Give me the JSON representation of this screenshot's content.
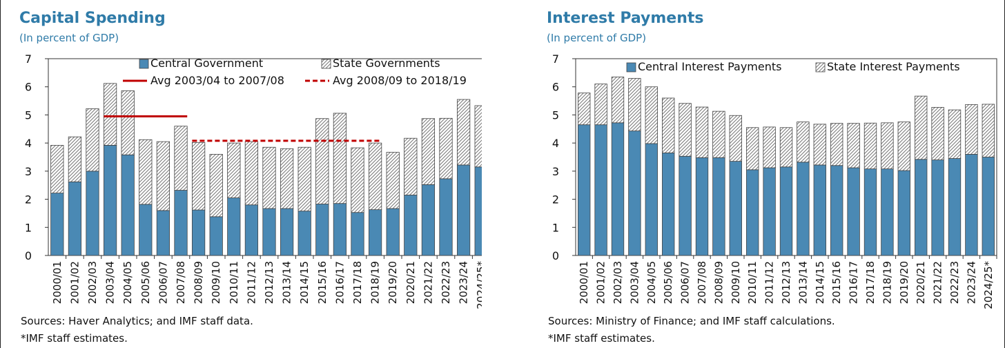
{
  "colors": {
    "title": "#2F7BA8",
    "bar_central": "#4A89B4",
    "hatch": "#777777",
    "avg_line": "#C00000"
  },
  "left": {
    "title": "Capital Spending",
    "subtitle": "(In percent of GDP)",
    "source": "Sources: Haver Analytics; and IMF staff data.",
    "note": "*IMF staff estimates."
  },
  "right": {
    "title": "Interest Payments",
    "subtitle": "(In percent of GDP)",
    "source": "Sources: Ministry of Finance; and IMF staff calculations.",
    "note": "*IMF staff estimates."
  },
  "chart_data": [
    {
      "type": "bar",
      "stacked": true,
      "title": "Capital Spending",
      "subtitle": "(In percent of GDP)",
      "ylim": [
        0,
        7
      ],
      "yticks": [
        0,
        1,
        2,
        3,
        4,
        5,
        6,
        7
      ],
      "categories": [
        "2000/01",
        "2001/02",
        "2002/03",
        "2003/04",
        "2004/05",
        "2005/06",
        "2006/07",
        "2007/08",
        "2008/09",
        "2009/10",
        "2010/11",
        "2011/12",
        "2012/13",
        "2013/14",
        "2014/15",
        "2015/16",
        "2016/17",
        "2017/18",
        "2018/19",
        "2019/20",
        "2020/21",
        "2021/22",
        "2022/23",
        "2023/24",
        "2024/25*"
      ],
      "series": [
        {
          "name": "Central Government",
          "values": [
            2.22,
            2.62,
            3.0,
            3.92,
            3.58,
            1.82,
            1.6,
            2.32,
            1.62,
            1.38,
            2.05,
            1.8,
            1.67,
            1.67,
            1.58,
            1.83,
            1.85,
            1.53,
            1.63,
            1.67,
            2.15,
            2.52,
            2.73,
            3.22,
            3.15
          ]
        },
        {
          "name": "State Governments",
          "values": [
            1.7,
            1.6,
            2.22,
            2.2,
            2.28,
            2.3,
            2.45,
            2.28,
            2.4,
            2.22,
            1.95,
            2.25,
            2.18,
            2.13,
            2.27,
            3.04,
            3.21,
            2.3,
            2.37,
            2.0,
            2.02,
            2.35,
            2.15,
            2.33,
            2.18
          ]
        }
      ],
      "avg_lines": [
        {
          "name": "Avg 2003/04 to 2007/08",
          "value": 4.95,
          "from": "2003/04",
          "to": "2007/08",
          "style": "solid"
        },
        {
          "name": "Avg 2008/09 to 2018/19",
          "value": 4.08,
          "from": "2008/09",
          "to": "2018/19",
          "style": "dashed"
        }
      ],
      "legend": "top"
    },
    {
      "type": "bar",
      "stacked": true,
      "title": "Interest Payments",
      "subtitle": "(In percent of GDP)",
      "ylim": [
        0,
        7
      ],
      "yticks": [
        0,
        1,
        2,
        3,
        4,
        5,
        6,
        7
      ],
      "categories": [
        "2000/01",
        "2001/02",
        "2002/03",
        "2003/04",
        "2004/05",
        "2005/06",
        "2006/07",
        "2007/08",
        "2008/09",
        "2009/10",
        "2010/11",
        "2011/12",
        "2012/13",
        "2013/14",
        "2014/15",
        "2015/16",
        "2016/17",
        "2017/18",
        "2018/19",
        "2019/20",
        "2020/21",
        "2021/22",
        "2022/23",
        "2023/24",
        "2024/25*"
      ],
      "series": [
        {
          "name": "Central Interest Payments",
          "values": [
            4.65,
            4.65,
            4.72,
            4.43,
            3.98,
            3.65,
            3.53,
            3.48,
            3.48,
            3.35,
            3.05,
            3.12,
            3.15,
            3.32,
            3.22,
            3.2,
            3.12,
            3.08,
            3.08,
            3.02,
            3.42,
            3.4,
            3.45,
            3.6,
            3.5
          ]
        },
        {
          "name": "State Interest Payments",
          "values": [
            1.13,
            1.45,
            1.63,
            1.87,
            2.02,
            1.95,
            1.88,
            1.8,
            1.65,
            1.63,
            1.5,
            1.45,
            1.4,
            1.43,
            1.45,
            1.5,
            1.58,
            1.63,
            1.64,
            1.73,
            2.25,
            1.87,
            1.73,
            1.77,
            1.88
          ]
        }
      ],
      "legend": "top"
    }
  ]
}
